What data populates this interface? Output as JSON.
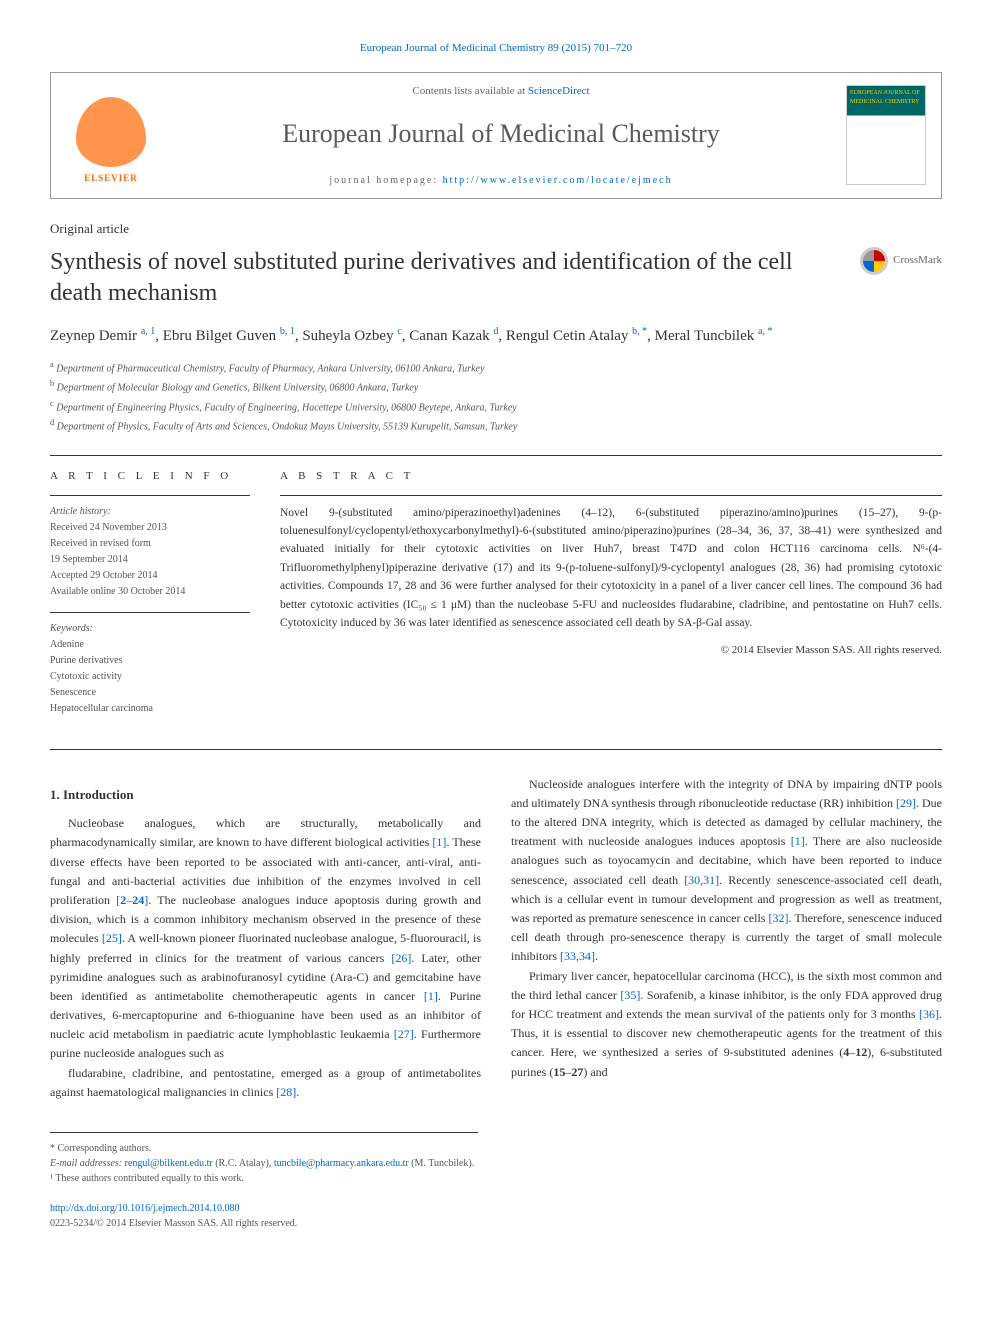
{
  "top_citation": "European Journal of Medicinal Chemistry 89 (2015) 701–720",
  "header": {
    "publisher_logo_text": "ELSEVIER",
    "contents_line_prefix": "Contents lists available at ",
    "contents_link_text": "ScienceDirect",
    "journal_name": "European Journal of Medicinal Chemistry",
    "homepage_label": "journal homepage: ",
    "homepage_url": "http://www.elsevier.com/locate/ejmech",
    "cover_text_top": "EUROPEAN JOURNAL OF MEDICINAL CHEMISTRY"
  },
  "article_type": "Original article",
  "title": "Synthesis of novel substituted purine derivatives and identification of the cell death mechanism",
  "crossmark_label": "CrossMark",
  "authors_html": "Zeynep Demir <sup>a, 1</sup>, Ebru Bilget Guven <sup>b, 1</sup>, Suheyla Ozbey <sup>c</sup>, Canan Kazak <sup>d</sup>, Rengul Cetin Atalay <sup>b, *</sup>, Meral Tuncbilek <sup>a, *</sup>",
  "affiliations": [
    {
      "sup": "a",
      "text": "Department of Pharmaceutical Chemistry, Faculty of Pharmacy, Ankara University, 06100 Ankara, Turkey"
    },
    {
      "sup": "b",
      "text": "Department of Molecular Biology and Genetics, Bilkent University, 06800 Ankara, Turkey"
    },
    {
      "sup": "c",
      "text": "Department of Engineering Physics, Faculty of Engineering, Hacettepe University, 06800 Beytepe, Ankara, Turkey"
    },
    {
      "sup": "d",
      "text": "Department of Physics, Faculty of Arts and Sciences, Ondokuz Mayıs University, 55139 Kurupelit, Samsun, Turkey"
    }
  ],
  "article_info": {
    "heading": "A R T I C L E   I N F O",
    "history_label": "Article history:",
    "history_lines": [
      "Received 24 November 2013",
      "Received in revised form",
      "19 September 2014",
      "Accepted 29 October 2014",
      "Available online 30 October 2014"
    ],
    "keywords_label": "Keywords:",
    "keywords": [
      "Adenine",
      "Purine derivatives",
      "Cytotoxic activity",
      "Senescence",
      "Hepatocellular carcinoma"
    ]
  },
  "abstract": {
    "heading": "A B S T R A C T",
    "text": "Novel 9-(substituted amino/piperazinoethyl)adenines (4–12), 6-(substituted piperazino/amino)purines (15–27), 9-(p-toluenesulfonyl/cyclopentyl/ethoxycarbonylmethyl)-6-(substituted amino/piperazino)purines (28–34, 36, 37, 38–41) were synthesized and evaluated initially for their cytotoxic activities on liver Huh7, breast T47D and colon HCT116 carcinoma cells. N⁶-(4-Trifluoromethylphenyl)piperazine derivative (17) and its 9-(p-toluene-sulfonyl)/9-cyclopentyl analogues (28, 36) had promising cytotoxic activities. Compounds 17, 28 and 36 were further analysed for their cytotoxicity in a panel of a liver cancer cell lines. The compound 36 had better cytotoxic activities (IC₅₀ ≤ 1 μM) than the nucleobase 5-FU and nucleosides fludarabine, cladribine, and pentostatine on Huh7 cells. Cytotoxicity induced by 36 was later identified as senescence associated cell death by SA-β-Gal assay.",
    "copyright": "© 2014 Elsevier Masson SAS. All rights reserved."
  },
  "body": {
    "section_heading": "1. Introduction",
    "paragraphs": [
      "Nucleobase analogues, which are structurally, metabolically and pharmacodynamically similar, are known to have different biological activities [1]. These diverse effects have been reported to be associated with anti-cancer, anti-viral, anti-fungal and anti-bacterial activities due inhibition of the enzymes involved in cell proliferation [2–24]. The nucleobase analogues induce apoptosis during growth and division, which is a common inhibitory mechanism observed in the presence of these molecules [25]. A well-known pioneer fluorinated nucleobase analogue, 5-fluorouracil, is highly preferred in clinics for the treatment of various cancers [26]. Later, other pyrimidine analogues such as arabinofuranosyl cytidine (Ara-C) and gemcitabine have been identified as antimetabolite chemotherapeutic agents in cancer [1]. Purine derivatives, 6-mercaptopurine and 6-thioguanine have been used as an inhibitor of nucleic acid metabolism in paediatric acute lymphoblastic leukaemia [27]. Furthermore purine nucleoside analogues such as",
      "fludarabine, cladribine, and pentostatine, emerged as a group of antimetabolites against haematological malignancies in clinics [28].",
      "Nucleoside analogues interfere with the integrity of DNA by impairing dNTP pools and ultimately DNA synthesis through ribonucleotide reductase (RR) inhibition [29]. Due to the altered DNA integrity, which is detected as damaged by cellular machinery, the treatment with nucleoside analogues induces apoptosis [1]. There are also nucleoside analogues such as toyocamycin and decitabine, which have been reported to induce senescence, associated cell death [30,31]. Recently senescence-associated cell death, which is a cellular event in tumour development and progression as well as treatment, was reported as premature senescence in cancer cells [32]. Therefore, senescence induced cell death through pro-senescence therapy is currently the target of small molecule inhibitors [33,34].",
      "Primary liver cancer, hepatocellular carcinoma (HCC), is the sixth most common and the third lethal cancer [35]. Sorafenib, a kinase inhibitor, is the only FDA approved drug for HCC treatment and extends the mean survival of the patients only for 3 months [36]. Thus, it is essential to discover new chemotherapeutic agents for the treatment of this cancer. Here, we synthesized a series of 9-substituted adenines (4–12), 6-substituted purines (15–27) and"
    ]
  },
  "footer": {
    "corresponding_label": "* Corresponding authors.",
    "email_label": "E-mail addresses: ",
    "email1": "rengul@bilkent.edu.tr",
    "email1_who": " (R.C. Atalay), ",
    "email2": "tuncbile@pharmacy.ankara.edu.tr",
    "email2_who": " (M. Tuncbilek).",
    "equal_contrib": "¹ These authors contributed equally to this work.",
    "doi": "http://dx.doi.org/10.1016/j.ejmech.2014.10.080",
    "issn_line": "0223-5234/© 2014 Elsevier Masson SAS. All rights reserved."
  },
  "colors": {
    "link": "#0066cc",
    "text": "#333333",
    "gray_text": "#555555",
    "border": "#999999",
    "elsevier_orange": "#ff6600"
  }
}
